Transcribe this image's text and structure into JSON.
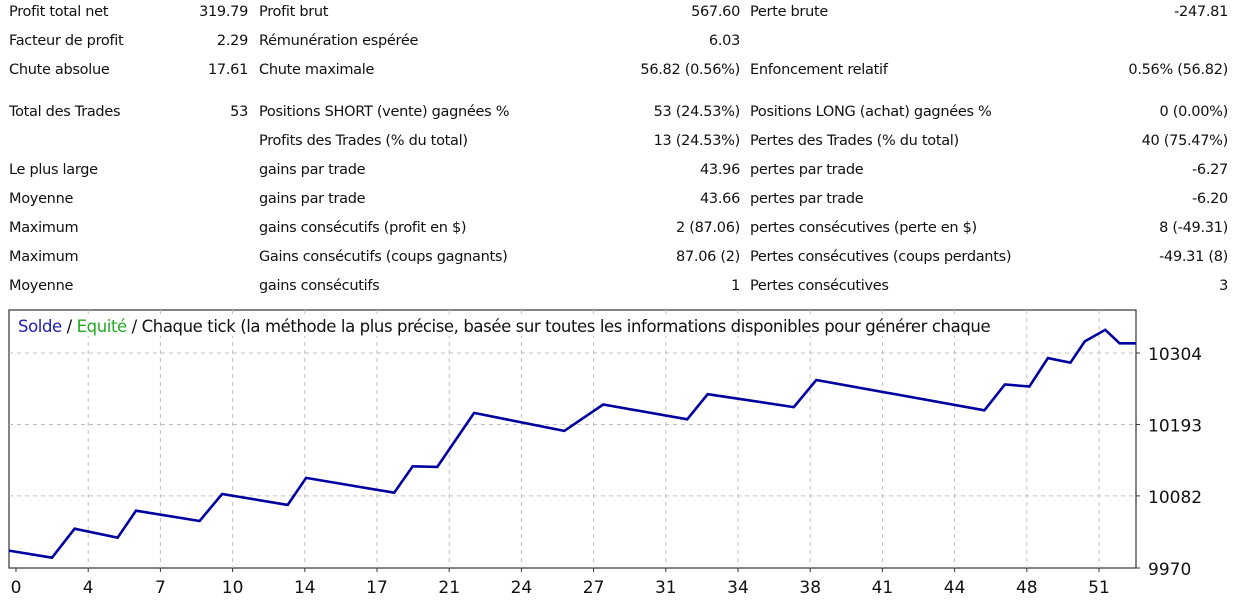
{
  "stats": {
    "rows": [
      [
        "Profit total net",
        "319.79",
        "Profit brut",
        "567.60",
        "Perte brute",
        "-247.81"
      ],
      [
        "Facteur de profit",
        "2.29",
        "Rémunération espérée",
        "6.03",
        "",
        ""
      ],
      [
        "Chute absolue",
        "17.61",
        "Chute maximale",
        "56.82 (0.56%)",
        "Enfoncement relatif",
        "0.56% (56.82)"
      ],
      [
        "Total des Trades",
        "53",
        "Positions SHORT (vente) gagnées %",
        "53 (24.53%)",
        "Positions LONG (achat) gagnées %",
        "0 (0.00%)"
      ],
      [
        "",
        "",
        "Profits des Trades (% du total)",
        "13 (24.53%)",
        "Pertes des Trades (% du total)",
        "40 (75.47%)"
      ],
      [
        "Le plus large",
        "",
        "gains par trade",
        "43.96",
        "pertes par trade",
        "-6.27"
      ],
      [
        "Moyenne",
        "",
        "gains par trade",
        "43.66",
        "pertes par trade",
        "-6.20"
      ],
      [
        "Maximum",
        "",
        "gains consécutifs (profit en $)",
        "2 (87.06)",
        "pertes consécutives (perte en $)",
        "8 (-49.31)"
      ],
      [
        "Maximum",
        "",
        "Gains consécutifs (coups gagnants)",
        "87.06 (2)",
        "Pertes consécutives (coups perdants)",
        "-49.31 (8)"
      ],
      [
        "Moyenne",
        "",
        "gains consécutifs",
        "1",
        "Pertes consécutives",
        "3"
      ]
    ]
  },
  "chart_data": {
    "type": "line",
    "title_parts": {
      "balance": "Solde",
      "sep1": " / ",
      "equity": "Equité",
      "rest": " / Chaque tick (la méthode la plus précise, basée sur toutes les informations disponibles pour générer chaque"
    },
    "colors": {
      "balance": "#0000a0",
      "equity": "#22aa22",
      "grid": "#c0c0c0"
    },
    "x_tick_labels": [
      "0",
      "4",
      "7",
      "10",
      "14",
      "17",
      "21",
      "24",
      "27",
      "31",
      "34",
      "38",
      "41",
      "44",
      "48",
      "51"
    ],
    "y_tick_labels": [
      "10304",
      "10193",
      "10082",
      "9970"
    ],
    "y_ticks": [
      10304,
      10193,
      10082,
      9970
    ],
    "ylim": [
      9970,
      10370
    ],
    "xlim": [
      0,
      55
    ],
    "grid": true,
    "series": [
      {
        "name": "Solde",
        "points": [
          [
            0,
            9997
          ],
          [
            2.1,
            9986
          ],
          [
            3.2,
            10031
          ],
          [
            5.3,
            10017
          ],
          [
            6.2,
            10059
          ],
          [
            9.3,
            10043
          ],
          [
            10.4,
            10085
          ],
          [
            13.6,
            10068
          ],
          [
            14.5,
            10110
          ],
          [
            18.8,
            10087
          ],
          [
            19.7,
            10128
          ],
          [
            20.9,
            10127
          ],
          [
            22.7,
            10211
          ],
          [
            27.1,
            10183
          ],
          [
            29.0,
            10224
          ],
          [
            33.1,
            10201
          ],
          [
            34.1,
            10240
          ],
          [
            38.3,
            10220
          ],
          [
            39.4,
            10262
          ],
          [
            47.6,
            10215
          ],
          [
            48.6,
            10255
          ],
          [
            49.8,
            10252
          ],
          [
            50.7,
            10296
          ],
          [
            51.8,
            10289
          ],
          [
            52.5,
            10322
          ],
          [
            53.5,
            10340
          ],
          [
            54.2,
            10319
          ],
          [
            55,
            10319
          ]
        ]
      }
    ]
  }
}
